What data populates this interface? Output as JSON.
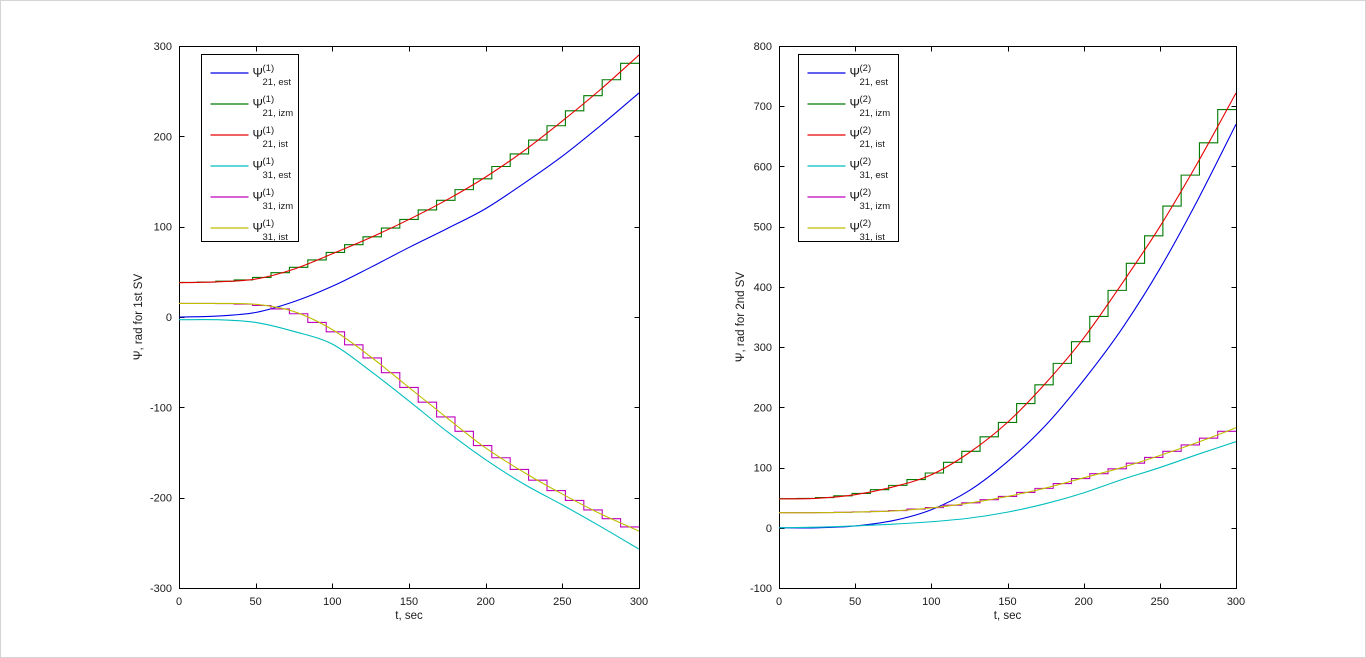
{
  "window": {
    "background": "#ffffff",
    "frame_color": "#d4d4d4"
  },
  "chart_data": [
    {
      "type": "line",
      "title": "",
      "xlabel": "t, sec",
      "ylabel": "Ψ, rad for 1st SV",
      "xlim": [
        0,
        300
      ],
      "ylim": [
        -300,
        300
      ],
      "xticks": [
        0,
        50,
        100,
        150,
        200,
        250,
        300
      ],
      "yticks": [
        -300,
        -200,
        -100,
        0,
        100,
        200,
        300
      ],
      "grid": false,
      "legend_position": "top-left-inside",
      "series": [
        {
          "id": "psi21-est",
          "legend_psi": "Ψ",
          "legend_sup": "(1)",
          "legend_sub": "21, est",
          "color": "#0000E6",
          "line_style": "solid",
          "x": [
            0,
            25,
            50,
            75,
            100,
            125,
            150,
            175,
            200,
            225,
            250,
            275,
            300
          ],
          "y": [
            0,
            1,
            5,
            17,
            34,
            55,
            77,
            98,
            120,
            148,
            178,
            212,
            248
          ]
        },
        {
          "id": "psi21-izm",
          "legend_psi": "Ψ",
          "legend_sup": "(1)",
          "legend_sub": "21, izm",
          "color": "#007A00",
          "line_style": "step",
          "step_sec": 12,
          "x": [
            0,
            25,
            50,
            75,
            100,
            125,
            150,
            175,
            200,
            225,
            250,
            275,
            300
          ],
          "y": [
            38,
            39,
            42,
            53,
            70,
            88,
            108,
            130,
            155,
            184,
            217,
            252,
            290
          ]
        },
        {
          "id": "psi21-ist",
          "legend_psi": "Ψ",
          "legend_sup": "(1)",
          "legend_sub": "21, ist",
          "color": "#E60000",
          "line_style": "solid",
          "x": [
            0,
            25,
            50,
            75,
            100,
            125,
            150,
            175,
            200,
            225,
            250,
            275,
            300
          ],
          "y": [
            38,
            39,
            42,
            53,
            70,
            88,
            108,
            130,
            155,
            184,
            217,
            252,
            290
          ]
        },
        {
          "id": "psi31-est",
          "legend_psi": "Ψ",
          "legend_sup": "(1)",
          "legend_sub": "31, est",
          "color": "#00BEBE",
          "line_style": "solid",
          "x": [
            0,
            25,
            50,
            75,
            100,
            125,
            150,
            175,
            200,
            225,
            250,
            275,
            300
          ],
          "y": [
            -3,
            -3,
            -6,
            -16,
            -30,
            -60,
            -93,
            -127,
            -158,
            -185,
            -208,
            -232,
            -257
          ]
        },
        {
          "id": "psi31-izm",
          "legend_psi": "Ψ",
          "legend_sup": "(1)",
          "legend_sub": "31, izm",
          "color": "#BE00BE",
          "line_style": "step",
          "step_sec": 12,
          "x": [
            0,
            25,
            50,
            75,
            100,
            125,
            150,
            175,
            200,
            225,
            250,
            275,
            300
          ],
          "y": [
            15,
            15,
            14,
            6,
            -14,
            -44,
            -78,
            -112,
            -145,
            -172,
            -196,
            -218,
            -237
          ]
        },
        {
          "id": "psi31-ist",
          "legend_psi": "Ψ",
          "legend_sup": "(1)",
          "legend_sub": "31, ist",
          "color": "#BEBE00",
          "line_style": "solid",
          "x": [
            0,
            25,
            50,
            75,
            100,
            125,
            150,
            175,
            200,
            225,
            250,
            275,
            300
          ],
          "y": [
            15,
            15,
            14,
            6,
            -14,
            -44,
            -78,
            -112,
            -145,
            -172,
            -196,
            -218,
            -237
          ]
        }
      ]
    },
    {
      "type": "line",
      "title": "",
      "xlabel": "t, sec",
      "ylabel": "Ψ, rad for 2nd SV",
      "xlim": [
        0,
        300
      ],
      "ylim": [
        -100,
        800
      ],
      "xticks": [
        0,
        50,
        100,
        150,
        200,
        250,
        300
      ],
      "yticks": [
        -100,
        0,
        100,
        200,
        300,
        400,
        500,
        600,
        700,
        800
      ],
      "grid": false,
      "legend_position": "top-left-inside",
      "series": [
        {
          "id": "psi21-est",
          "legend_psi": "Ψ",
          "legend_sup": "(2)",
          "legend_sub": "21, est",
          "color": "#0000E6",
          "line_style": "solid",
          "x": [
            0,
            25,
            50,
            75,
            100,
            125,
            150,
            175,
            200,
            225,
            250,
            275,
            300
          ],
          "y": [
            0,
            0,
            3,
            12,
            30,
            62,
            110,
            170,
            245,
            330,
            430,
            545,
            670
          ]
        },
        {
          "id": "psi21-izm",
          "legend_psi": "Ψ",
          "legend_sup": "(2)",
          "legend_sub": "21, izm",
          "color": "#007A00",
          "line_style": "step",
          "step_sec": 12,
          "x": [
            0,
            25,
            50,
            75,
            100,
            125,
            150,
            175,
            200,
            225,
            250,
            275,
            300
          ],
          "y": [
            48,
            49,
            55,
            68,
            88,
            125,
            175,
            240,
            315,
            405,
            500,
            607,
            722
          ]
        },
        {
          "id": "psi21-ist",
          "legend_psi": "Ψ",
          "legend_sup": "(2)",
          "legend_sub": "21, ist",
          "color": "#E60000",
          "line_style": "solid",
          "x": [
            0,
            25,
            50,
            75,
            100,
            125,
            150,
            175,
            200,
            225,
            250,
            275,
            300
          ],
          "y": [
            48,
            49,
            55,
            68,
            88,
            125,
            175,
            240,
            315,
            405,
            500,
            607,
            722
          ]
        },
        {
          "id": "psi31-est",
          "legend_psi": "Ψ",
          "legend_sup": "(2)",
          "legend_sub": "31, est",
          "color": "#00BEBE",
          "line_style": "solid",
          "x": [
            0,
            25,
            50,
            75,
            100,
            125,
            150,
            175,
            200,
            225,
            250,
            275,
            300
          ],
          "y": [
            0,
            1,
            3,
            6,
            10,
            16,
            26,
            40,
            58,
            80,
            100,
            122,
            143
          ]
        },
        {
          "id": "psi31-izm",
          "legend_psi": "Ψ",
          "legend_sup": "(2)",
          "legend_sub": "31, izm",
          "color": "#BE00BE",
          "line_style": "step",
          "step_sec": 12,
          "x": [
            0,
            25,
            50,
            75,
            100,
            125,
            150,
            175,
            200,
            225,
            250,
            275,
            300
          ],
          "y": [
            25,
            25,
            26,
            28,
            33,
            41,
            52,
            66,
            83,
            100,
            120,
            142,
            166
          ]
        },
        {
          "id": "psi31-ist",
          "legend_psi": "Ψ",
          "legend_sup": "(2)",
          "legend_sub": "31, ist",
          "color": "#BEBE00",
          "line_style": "solid",
          "x": [
            0,
            25,
            50,
            75,
            100,
            125,
            150,
            175,
            200,
            225,
            250,
            275,
            300
          ],
          "y": [
            25,
            25,
            26,
            28,
            33,
            41,
            52,
            66,
            83,
            100,
            120,
            142,
            166
          ]
        }
      ]
    }
  ]
}
